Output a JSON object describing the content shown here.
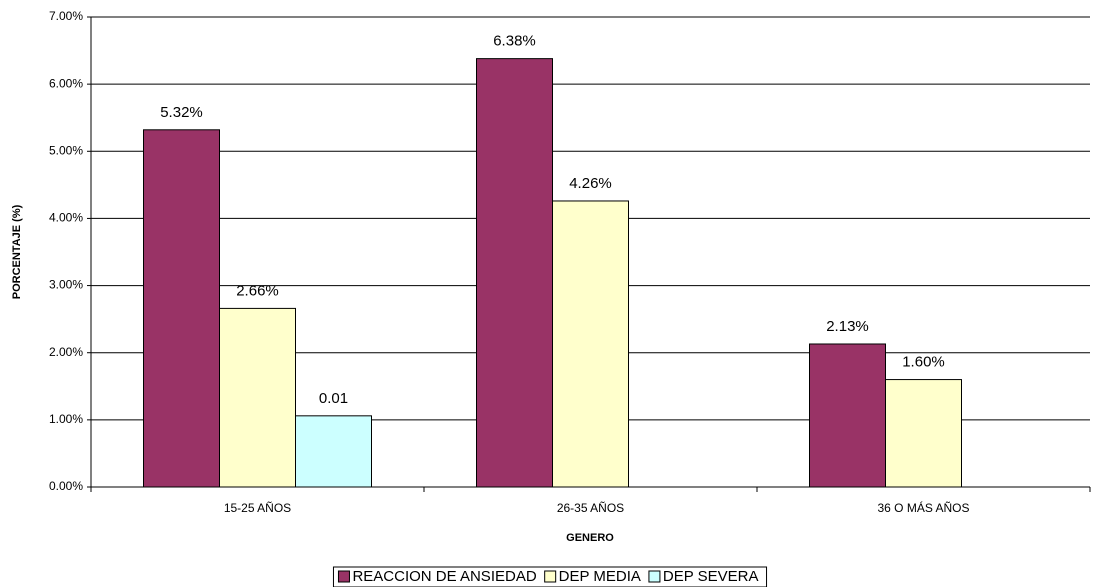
{
  "chart_data": {
    "type": "bar",
    "x_label": "GENERO",
    "y_label": "PORCENTAJE (%)",
    "categories": [
      "15-25 AÑOS",
      "26-35 AÑOS",
      "36 O MÁS AÑOS"
    ],
    "series": [
      {
        "name": "REACCION DE ANSIEDAD",
        "color": "#993366",
        "values": [
          5.32,
          6.38,
          2.13
        ],
        "value_labels": [
          "5.32%",
          "6.38%",
          "2.13%"
        ]
      },
      {
        "name": "DEP MEDIA",
        "color": "#ffffcc",
        "values": [
          2.66,
          4.26,
          1.6
        ],
        "value_labels": [
          "2.66%",
          "4.26%",
          "1.60%"
        ]
      },
      {
        "name": "DEP SEVERA",
        "color": "#ccffff",
        "values": [
          1.06,
          null,
          null
        ],
        "value_labels": [
          "0.01",
          null,
          null
        ]
      }
    ],
    "ylim": [
      0,
      7
    ],
    "yticks": [
      {
        "value": 0,
        "label": "0.00%"
      },
      {
        "value": 1,
        "label": "1.00%"
      },
      {
        "value": 2,
        "label": "2.00%"
      },
      {
        "value": 3,
        "label": "3.00%"
      },
      {
        "value": 4,
        "label": "4.00%"
      },
      {
        "value": 5,
        "label": "5.00%"
      },
      {
        "value": 6,
        "label": "6.00%"
      },
      {
        "value": 7,
        "label": "7.00%"
      }
    ],
    "grid": true,
    "legend": "bottom"
  }
}
